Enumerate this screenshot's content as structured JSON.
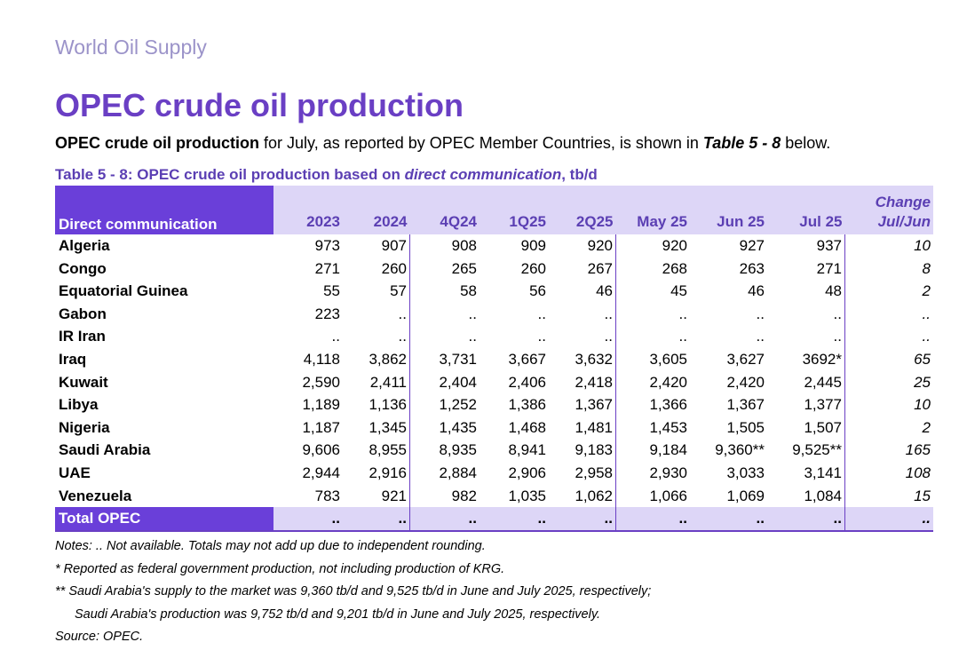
{
  "section_label": "World Oil Supply",
  "title": "OPEC crude oil production",
  "intro": {
    "bold_lead": "OPEC crude oil production",
    "text": " for July, as reported by OPEC Member Countries, is shown in ",
    "table_ref": "Table 5 - 8",
    "tail": " below."
  },
  "caption": {
    "lead": "Table 5 - 8: OPEC crude oil production based on ",
    "italic": "direct communication",
    "tail": ", tb/d"
  },
  "table": {
    "name_header": "Direct communication",
    "columns": [
      "2023",
      "2024",
      "4Q24",
      "1Q25",
      "2Q25",
      "May 25",
      "Jun 25",
      "Jul 25"
    ],
    "change_header_1": "Change",
    "change_header_2": "Jul/Jun",
    "rows": [
      {
        "name": "Algeria",
        "values": [
          "973",
          "907",
          "908",
          "909",
          "920",
          "920",
          "927",
          "937"
        ],
        "change": "10"
      },
      {
        "name": "Congo",
        "values": [
          "271",
          "260",
          "265",
          "260",
          "267",
          "268",
          "263",
          "271"
        ],
        "change": "8"
      },
      {
        "name": "Equatorial Guinea",
        "values": [
          "55",
          "57",
          "58",
          "56",
          "46",
          "45",
          "46",
          "48"
        ],
        "change": "2"
      },
      {
        "name": "Gabon",
        "values": [
          "223",
          "..",
          "..",
          "..",
          "..",
          "..",
          "..",
          ".."
        ],
        "change": ".."
      },
      {
        "name": "IR Iran",
        "values": [
          "..",
          "..",
          "..",
          "..",
          "..",
          "..",
          "..",
          ".."
        ],
        "change": ".."
      },
      {
        "name": "Iraq",
        "values": [
          "4,118",
          "3,862",
          "3,731",
          "3,667",
          "3,632",
          "3,605",
          "3,627",
          "3692*"
        ],
        "change": "65"
      },
      {
        "name": "Kuwait",
        "values": [
          "2,590",
          "2,411",
          "2,404",
          "2,406",
          "2,418",
          "2,420",
          "2,420",
          "2,445"
        ],
        "change": "25"
      },
      {
        "name": "Libya",
        "values": [
          "1,189",
          "1,136",
          "1,252",
          "1,386",
          "1,367",
          "1,366",
          "1,367",
          "1,377"
        ],
        "change": "10"
      },
      {
        "name": "Nigeria",
        "values": [
          "1,187",
          "1,345",
          "1,435",
          "1,468",
          "1,481",
          "1,453",
          "1,505",
          "1,507"
        ],
        "change": "2"
      },
      {
        "name": "Saudi Arabia",
        "values": [
          "9,606",
          "8,955",
          "8,935",
          "8,941",
          "9,183",
          "9,184",
          "9,360**",
          "9,525**"
        ],
        "change": "165"
      },
      {
        "name": "UAE",
        "values": [
          "2,944",
          "2,916",
          "2,884",
          "2,906",
          "2,958",
          "2,930",
          "3,033",
          "3,141"
        ],
        "change": "108"
      },
      {
        "name": "Venezuela",
        "values": [
          "783",
          "921",
          "982",
          "1,035",
          "1,062",
          "1,066",
          "1,069",
          "1,084"
        ],
        "change": "15"
      }
    ],
    "total": {
      "name": "Total  OPEC",
      "values": [
        "..",
        "..",
        "..",
        "..",
        "..",
        "..",
        "..",
        ".."
      ],
      "change": ".."
    }
  },
  "notes": [
    "Notes:  .. Not available. Totals may not add up due to independent rounding.",
    "*   Reported as federal government production, not including production of KRG.",
    "** Saudi Arabia's supply to the market was 9,360 tb/d and 9,525 tb/d in June and July 2025, respectively;",
    "Saudi Arabia's production was 9,752 tb/d and 9,201 tb/d in June and July 2025, respectively.",
    "Source: OPEC."
  ]
}
